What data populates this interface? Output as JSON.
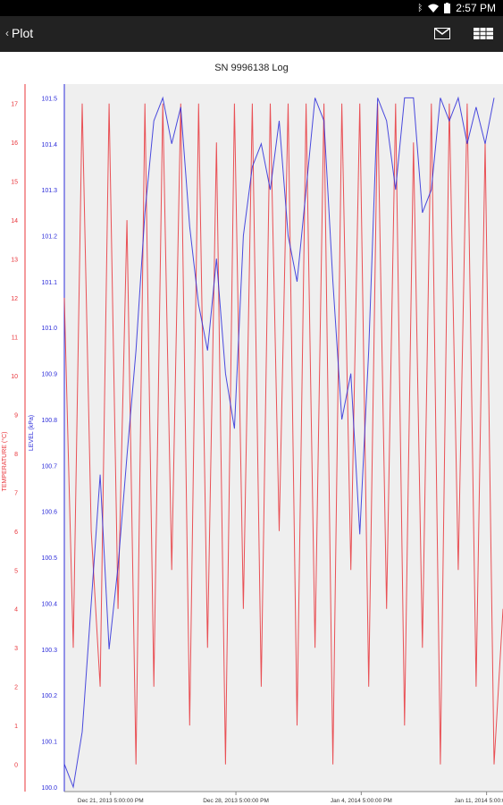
{
  "status_bar": {
    "time": "2:57 PM",
    "icons": [
      "bluetooth-icon",
      "wifi-icon",
      "battery-icon"
    ]
  },
  "action_bar": {
    "back_label": "Plot",
    "icons": [
      "mail-icon",
      "grid-icon"
    ]
  },
  "chart_data": {
    "type": "line",
    "title": "SN 9996138 Log",
    "left_axis": {
      "label": "TEMPERATURE (°C)",
      "color": "#e8343a",
      "ticks": [
        "0",
        "1",
        "2",
        "3",
        "4",
        "5",
        "6",
        "7",
        "8",
        "9",
        "10",
        "11",
        "12",
        "13",
        "14",
        "15",
        "16",
        "17"
      ],
      "range": [
        -0.7,
        17.5
      ]
    },
    "right_axis": {
      "label": "LEVEL (kPa)",
      "color": "#2b2bd9",
      "ticks": [
        "100.0",
        "100.1",
        "100.2",
        "100.3",
        "100.4",
        "100.5",
        "100.6",
        "100.7",
        "100.8",
        "100.9",
        "101.0",
        "101.1",
        "101.2",
        "101.3",
        "101.4",
        "101.5"
      ],
      "range": [
        99.99,
        101.53
      ]
    },
    "x_axis": {
      "ticks": [
        "Dec 21, 2013 5:00:00 PM",
        "Dec 28, 2013 5:00:00 PM",
        "Jan 4, 2014 5:00:00 PM",
        "Jan 11, 2014 5:00:00 PM"
      ],
      "range": [
        "2013-12-19 03:00",
        "2014-01-12 15:00"
      ]
    },
    "series": [
      {
        "name": "",
        "color": "#e8343a",
        "axis": "left",
        "x_days": [
          0,
          0.5,
          1,
          1.5,
          2,
          2.5,
          3,
          3.5,
          4,
          4.5,
          5,
          5.5,
          6,
          6.5,
          7,
          7.5,
          8,
          8.5,
          9,
          9.5,
          10,
          10.5,
          11,
          11.5,
          12,
          12.5,
          13,
          13.5,
          14,
          14.5,
          15,
          15.5,
          16,
          16.5,
          17,
          17.5,
          18,
          18.5,
          19,
          19.5,
          20,
          20.5,
          21,
          21.5,
          22,
          22.5,
          23,
          23.5,
          24,
          24.5
        ],
        "values": [
          12,
          3,
          17,
          6,
          2,
          17,
          4,
          14,
          0,
          17,
          2,
          17,
          5,
          17,
          1,
          17,
          3,
          16,
          0,
          17,
          4,
          17,
          2,
          17,
          6,
          17,
          1,
          17,
          3,
          17,
          0,
          17,
          5,
          17,
          2,
          17,
          4,
          17,
          1,
          16,
          3,
          17,
          0,
          17,
          5,
          17,
          2,
          16,
          0,
          4
        ]
      },
      {
        "name": "",
        "color": "#2b2bd9",
        "axis": "right",
        "x_days": [
          0,
          0.5,
          1,
          1.5,
          2,
          2.5,
          3,
          3.5,
          4,
          4.5,
          5,
          5.5,
          6,
          6.5,
          7,
          7.5,
          8,
          8.5,
          9,
          9.5,
          10,
          10.5,
          11,
          11.5,
          12,
          12.5,
          13,
          13.5,
          14,
          14.5,
          15,
          15.5,
          16,
          16.5,
          17,
          17.5,
          18,
          18.5,
          19,
          19.5,
          20,
          20.5,
          21,
          21.5,
          22,
          22.5,
          23,
          23.5,
          24
        ],
        "values": [
          100.05,
          100.0,
          100.12,
          100.4,
          100.68,
          100.3,
          100.48,
          100.72,
          100.95,
          101.25,
          101.45,
          101.5,
          101.4,
          101.48,
          101.22,
          101.05,
          100.95,
          101.15,
          100.9,
          100.78,
          101.2,
          101.35,
          101.4,
          101.3,
          101.45,
          101.2,
          101.1,
          101.3,
          101.5,
          101.45,
          101.1,
          100.8,
          100.9,
          100.55,
          100.95,
          101.5,
          101.45,
          101.3,
          101.5,
          101.5,
          101.25,
          101.3,
          101.5,
          101.45,
          101.5,
          101.4,
          101.48,
          101.4,
          101.5
        ]
      }
    ]
  }
}
